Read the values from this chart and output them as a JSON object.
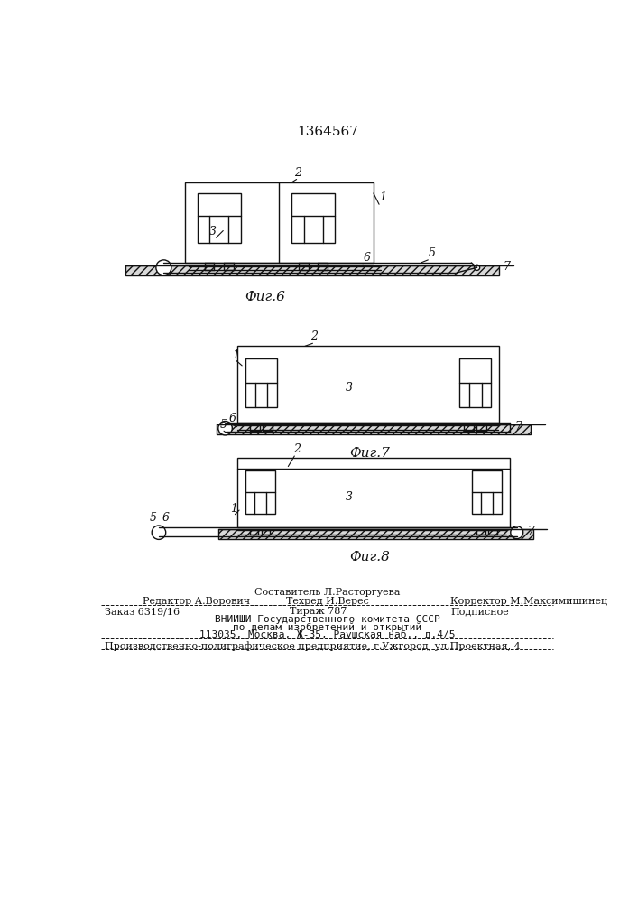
{
  "title": "1364567",
  "fig6_caption": "Фиг.6",
  "fig7_caption": "Фиг.7",
  "fig8_caption": "Фиг.8",
  "bg_color": "#ffffff",
  "line_color": "#111111",
  "footer": {
    "sestavitel": "Составитель Л.Расторгуева",
    "tehred": "Техред И.Верес",
    "redaktor": "Редактор А.Ворович",
    "korrektor": "Корректор М.Максимишинец",
    "zakaz": "Заказ 6319/16",
    "tirazh": "Тираж 787",
    "podpisnoe": "Подписное",
    "vniishi": "ВНИИШИ Государственного комитета СССР",
    "po_delam": "по делам изобретений и открытий",
    "address": "113035, Москва, Ж-35, Раушская наб., д.4/5",
    "factory": "Производственно-полиграфическое предприятие, г.Ужгород, ул.Проектная, 4"
  }
}
